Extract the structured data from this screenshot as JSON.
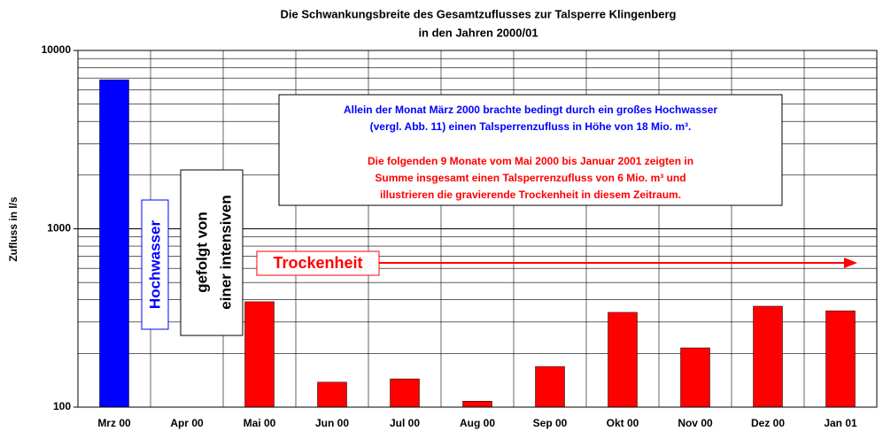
{
  "chart_data": {
    "type": "bar",
    "title": [
      "Die Schwankungsbreite des Gesamtzuflusses zur Talsperre  Klingenberg",
      "in den Jahren 2000/01"
    ],
    "y_label": "Zufluss in l/s",
    "categories": [
      "Mrz 00",
      "Apr 00",
      "Mai 00",
      "Jun 00",
      "Jul 00",
      "Aug 00",
      "Sep 00",
      "Okt 00",
      "Nov 00",
      "Dez 00",
      "Jan 01"
    ],
    "values": [
      6850,
      null,
      390,
      138,
      144,
      108,
      169,
      340,
      215,
      368,
      347
    ],
    "colors": [
      "#0000ff",
      "#ff0000",
      "#ff0000",
      "#ff0000",
      "#ff0000",
      "#ff0000",
      "#ff0000",
      "#ff0000",
      "#ff0000",
      "#ff0000",
      "#ff0000"
    ],
    "log_scale": true,
    "ylim": [
      100,
      10000
    ],
    "yticks": [
      100,
      1000,
      10000
    ],
    "yticks_minor": [
      200,
      300,
      400,
      500,
      600,
      700,
      800,
      900,
      2000,
      3000,
      4000,
      5000,
      6000,
      7000,
      8000,
      9000
    ],
    "grid": true,
    "annotations": {
      "note_blue": [
        "Allein der Monat März 2000 brachte bedingt durch ein großes Hochwasser",
        "(vergl. Abb. 11) einen Talsperrenzufluss in Höhe von 18 Mio. m³."
      ],
      "note_red": [
        "Die folgenden 9 Monate vom Mai 2000 bis Januar 2001 zeigten in",
        "Summe insgesamt einen Talsperrenzufluss von 6 Mio. m³ und",
        "illustrieren die gravierende Trockenheit in diesem Zeitraum."
      ],
      "hochwasser": "Hochwasser",
      "gefolgt": [
        "gefolgt von",
        "einer intensiven"
      ],
      "trockenheit": "Trockenheit"
    }
  }
}
